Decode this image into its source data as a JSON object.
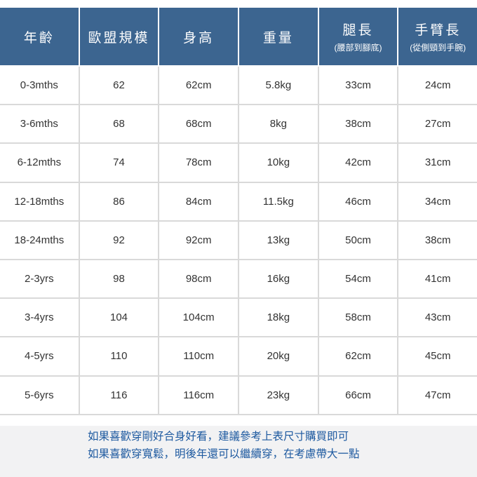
{
  "header": [
    {
      "title": "年齡",
      "sub": ""
    },
    {
      "title": "歐盟規模",
      "sub": ""
    },
    {
      "title": "身高",
      "sub": ""
    },
    {
      "title": "重量",
      "sub": ""
    },
    {
      "title": "腿長",
      "sub": "(腰部到腳底)"
    },
    {
      "title": "手臂長",
      "sub": "(從側頸到手腕)"
    }
  ],
  "rows": [
    [
      "0-3mths",
      "62",
      "62cm",
      "5.8kg",
      "33cm",
      "24cm"
    ],
    [
      "3-6mths",
      "68",
      "68cm",
      "8kg",
      "38cm",
      "27cm"
    ],
    [
      "6-12mths",
      "74",
      "78cm",
      "10kg",
      "42cm",
      "31cm"
    ],
    [
      "12-18mths",
      "86",
      "84cm",
      "11.5kg",
      "46cm",
      "34cm"
    ],
    [
      "18-24mths",
      "92",
      "92cm",
      "13kg",
      "50cm",
      "38cm"
    ],
    [
      "2-3yrs",
      "98",
      "98cm",
      "16kg",
      "54cm",
      "41cm"
    ],
    [
      "3-4yrs",
      "104",
      "104cm",
      "18kg",
      "58cm",
      "43cm"
    ],
    [
      "4-5yrs",
      "110",
      "110cm",
      "20kg",
      "62cm",
      "45cm"
    ],
    [
      "5-6yrs",
      "116",
      "116cm",
      "23kg",
      "66cm",
      "47cm"
    ]
  ],
  "notes": [
    "如果喜歡穿剛好合身好看，建議參考上表尺寸購買即可",
    "如果喜歡穿寬鬆，明後年還可以繼續穿，在考慮帶大一點"
  ],
  "colors": {
    "header_bg": "#3c6590",
    "note_text": "#1e5aa0",
    "footer_bg": "#f2f2f3"
  }
}
